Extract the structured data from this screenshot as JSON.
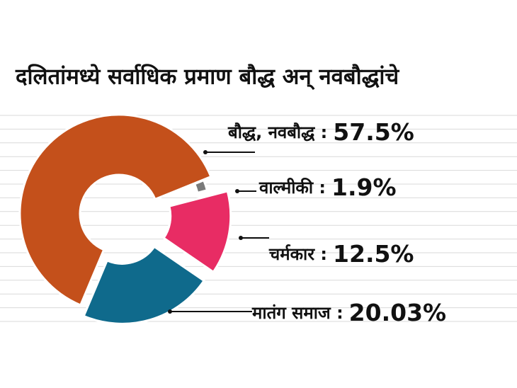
{
  "chart_data": {
    "type": "donut",
    "title": "दलितांमध्ये सर्वाधिक प्रमाण बौद्ध अन् नवबौद्धांचे",
    "categories": [
      "बौद्ध, नवबौद्ध :",
      "वाल्मीकी :",
      "चर्मकार :",
      "मातंग समाज :"
    ],
    "values": [
      57.5,
      1.9,
      12.5,
      20.03
    ],
    "value_labels": [
      "57.5%",
      "1.9%",
      "12.5%",
      "20.03%"
    ],
    "colors": [
      "#c4501b",
      "#7a7a7a",
      "#e82c64",
      "#0f6a8c"
    ]
  }
}
